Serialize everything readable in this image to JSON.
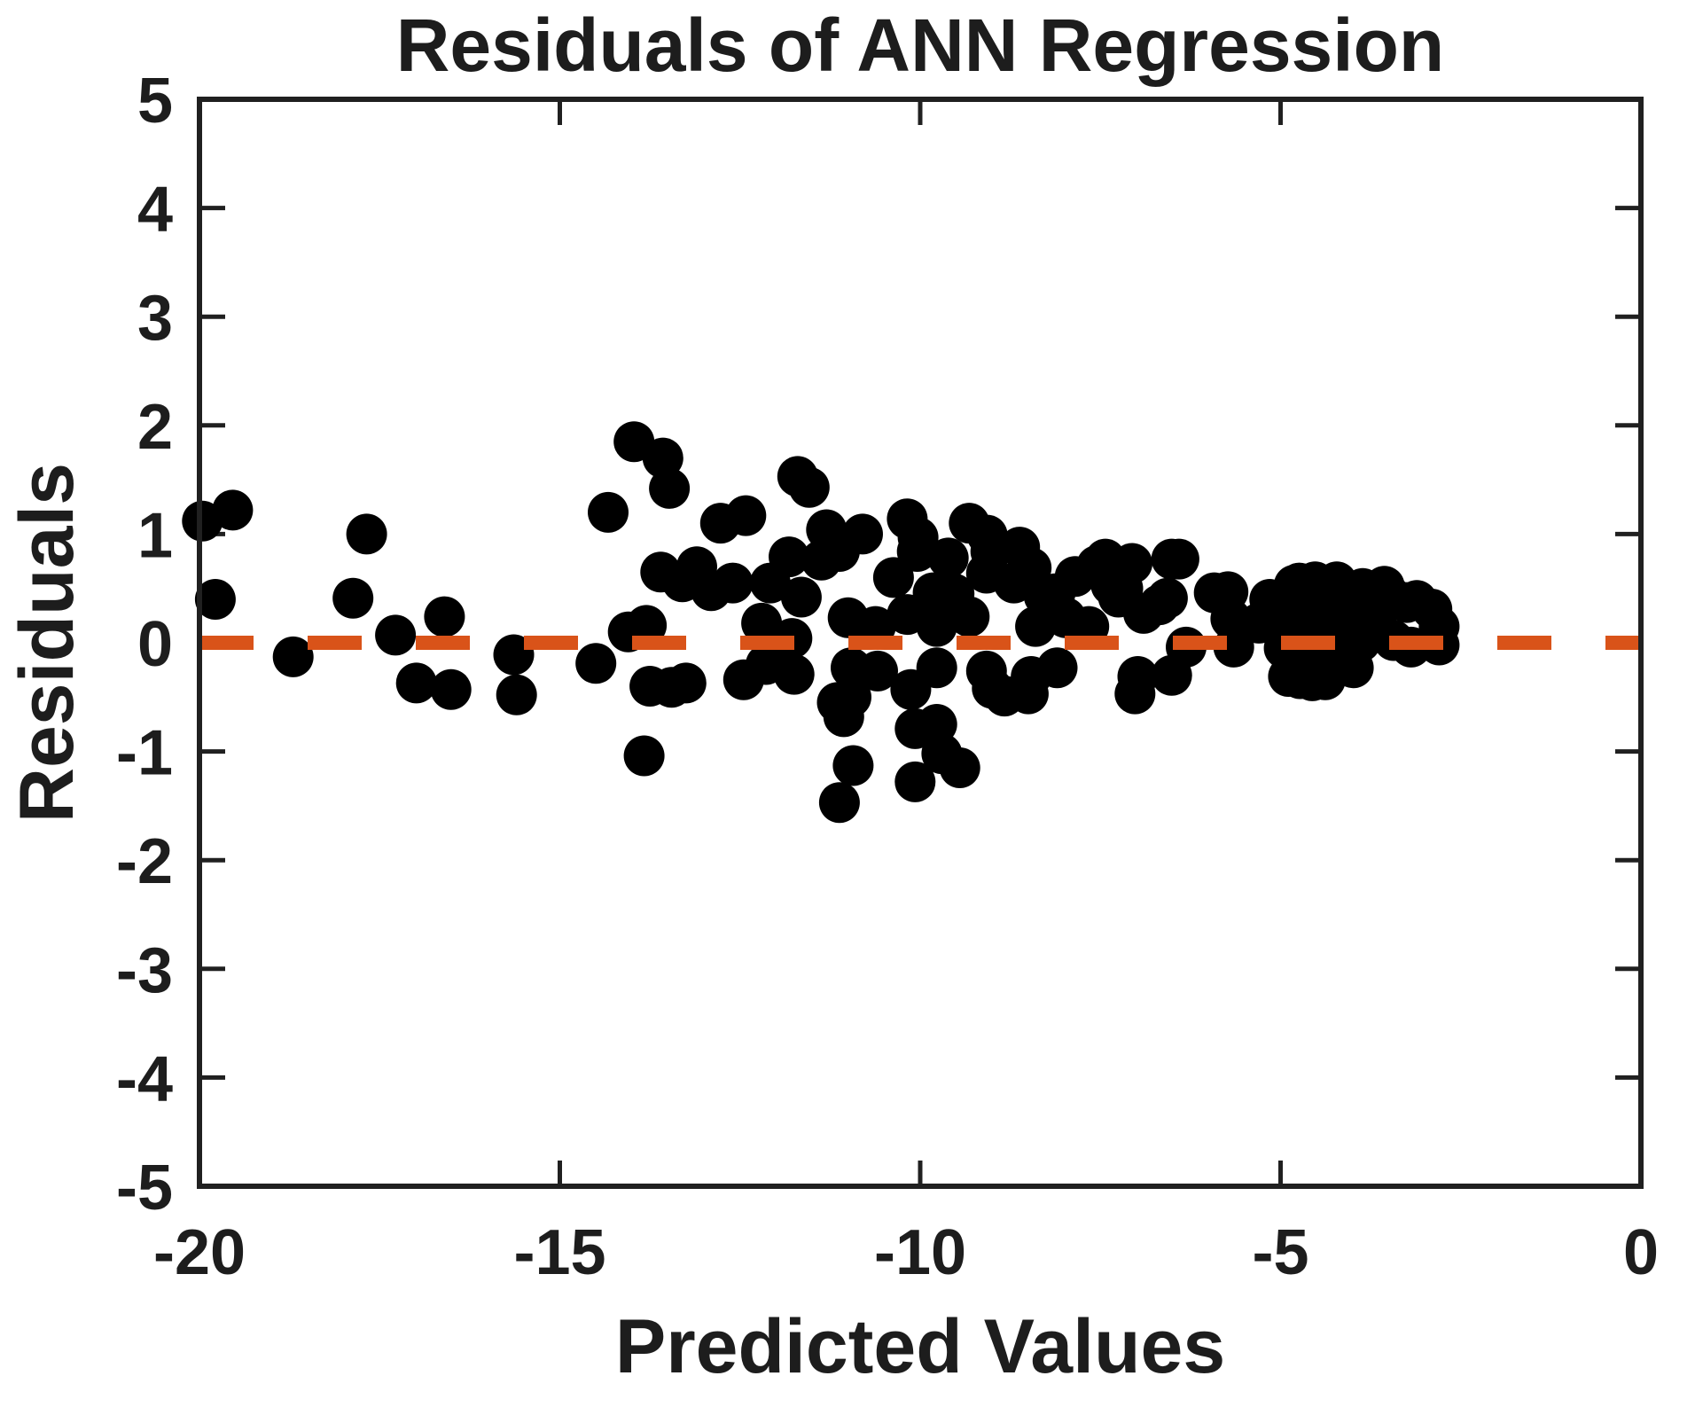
{
  "figure": {
    "title": "Residuals of ANN Regression",
    "xlabel": "Predicted Values",
    "ylabel": "Residuals"
  },
  "style": {
    "background": "#FFFFFF",
    "axis_color": "#202020",
    "marker_color": "#000000",
    "accent_orange": "#D95319"
  },
  "chart_data": {
    "type": "scatter",
    "title": "Residuals of ANN Regression",
    "xlabel": "Predicted Values",
    "ylabel": "Residuals",
    "xlim": [
      -20,
      0
    ],
    "ylim": [
      -5,
      5
    ],
    "xticks": [
      -20,
      -15,
      -10,
      -5,
      0
    ],
    "yticks": [
      -5,
      -4,
      -3,
      -2,
      -1,
      0,
      1,
      2,
      3,
      4,
      5
    ],
    "grid": false,
    "legend": null,
    "marker_color": "#000000",
    "zero_line": {
      "y": 0,
      "color": "#D95319",
      "style": "dashed"
    },
    "points": [
      [
        -19.96,
        1.12
      ],
      [
        -19.54,
        1.22
      ],
      [
        -19.78,
        0.4
      ],
      [
        -18.7,
        -0.13
      ],
      [
        -17.87,
        0.41
      ],
      [
        -17.68,
        1.0
      ],
      [
        -17.28,
        0.07
      ],
      [
        -16.99,
        -0.37
      ],
      [
        -16.6,
        0.24
      ],
      [
        -16.51,
        -0.43
      ],
      [
        -15.64,
        -0.11
      ],
      [
        -15.6,
        -0.48
      ],
      [
        -14.5,
        -0.19
      ],
      [
        -14.33,
        1.2
      ],
      [
        -14.05,
        0.1
      ],
      [
        -13.97,
        1.85
      ],
      [
        -13.83,
        -1.04
      ],
      [
        -13.8,
        0.16
      ],
      [
        -13.75,
        -0.4
      ],
      [
        -13.6,
        0.65
      ],
      [
        -13.57,
        1.7
      ],
      [
        -13.48,
        1.42
      ],
      [
        -13.45,
        -0.41
      ],
      [
        -13.3,
        0.56
      ],
      [
        -13.25,
        -0.37
      ],
      [
        -13.1,
        0.7
      ],
      [
        -12.9,
        0.48
      ],
      [
        -12.77,
        1.1
      ],
      [
        -12.6,
        0.55
      ],
      [
        -12.45,
        -0.34
      ],
      [
        -12.42,
        1.17
      ],
      [
        -12.2,
        0.18
      ],
      [
        -12.14,
        -0.2
      ],
      [
        -12.08,
        0.55
      ],
      [
        -11.82,
        0.79
      ],
      [
        -11.78,
        0.04
      ],
      [
        -11.75,
        -0.29
      ],
      [
        -11.7,
        1.53
      ],
      [
        -11.65,
        0.42
      ],
      [
        -11.54,
        1.43
      ],
      [
        -11.37,
        0.76
      ],
      [
        -11.3,
        1.04
      ],
      [
        -11.15,
        -0.55
      ],
      [
        -11.12,
        0.84
      ],
      [
        -11.12,
        -1.47
      ],
      [
        -11.06,
        -0.68
      ],
      [
        -11.0,
        0.23
      ],
      [
        -10.96,
        -0.23
      ],
      [
        -10.96,
        -0.5
      ],
      [
        -10.93,
        -1.13
      ],
      [
        -10.8,
        1.0
      ],
      [
        -10.62,
        0.15
      ],
      [
        -10.59,
        -0.26
      ],
      [
        -10.37,
        0.6
      ],
      [
        -10.18,
        1.14
      ],
      [
        -10.18,
        0.26
      ],
      [
        -10.13,
        -0.43
      ],
      [
        -10.07,
        -0.79
      ],
      [
        -10.07,
        -1.28
      ],
      [
        -10.04,
        0.84
      ],
      [
        -10.03,
        0.97
      ],
      [
        -9.82,
        0.46
      ],
      [
        -9.77,
        0.15
      ],
      [
        -9.77,
        -0.23
      ],
      [
        -9.77,
        -0.75
      ],
      [
        -9.7,
        -1.02
      ],
      [
        -9.61,
        0.78
      ],
      [
        -9.53,
        0.45
      ],
      [
        -9.45,
        -1.15
      ],
      [
        -9.32,
        1.1
      ],
      [
        -9.32,
        0.24
      ],
      [
        -9.08,
        0.64
      ],
      [
        -9.08,
        -0.26
      ],
      [
        -9.07,
        0.99
      ],
      [
        -9.02,
        0.84
      ],
      [
        -9.0,
        -0.42
      ],
      [
        -8.83,
        -0.49
      ],
      [
        -8.7,
        0.55
      ],
      [
        -8.62,
        0.88
      ],
      [
        -8.5,
        -0.47
      ],
      [
        -8.48,
        0.64
      ],
      [
        -8.46,
        0.69
      ],
      [
        -8.46,
        -0.31
      ],
      [
        -8.4,
        0.15
      ],
      [
        -8.28,
        0.43
      ],
      [
        -8.13,
        0.45
      ],
      [
        -8.1,
        -0.23
      ],
      [
        -7.98,
        0.23
      ],
      [
        -7.85,
        0.61
      ],
      [
        -7.66,
        0.15
      ],
      [
        -7.55,
        0.71
      ],
      [
        -7.43,
        0.77
      ],
      [
        -7.35,
        0.53
      ],
      [
        -7.25,
        0.42
      ],
      [
        -7.19,
        0.5
      ],
      [
        -7.06,
        0.73
      ],
      [
        -7.02,
        -0.47
      ],
      [
        -6.98,
        -0.31
      ],
      [
        -6.9,
        0.27
      ],
      [
        -6.68,
        0.35
      ],
      [
        -6.57,
        0.41
      ],
      [
        -6.51,
        0.77
      ],
      [
        -6.51,
        -0.3
      ],
      [
        -6.41,
        0.77
      ],
      [
        -6.31,
        -0.04
      ],
      [
        -5.92,
        0.46
      ],
      [
        -5.73,
        0.47
      ],
      [
        -5.69,
        0.22
      ],
      [
        -5.65,
        -0.04
      ],
      [
        -5.3,
        0.18
      ],
      [
        -5.15,
        0.4
      ],
      [
        -5.05,
        0.22
      ],
      [
        -4.95,
        -0.05
      ],
      [
        -4.89,
        -0.31
      ],
      [
        -4.87,
        0.27
      ],
      [
        -4.81,
        0.53
      ],
      [
        -4.78,
        0.12
      ],
      [
        -4.77,
        0.49
      ],
      [
        -4.74,
        0.55
      ],
      [
        -4.73,
        -0.33
      ],
      [
        -4.62,
        0.29
      ],
      [
        -4.62,
        -0.15
      ],
      [
        -4.56,
        -0.35
      ],
      [
        -4.52,
        0.56
      ],
      [
        -4.5,
        0.07
      ],
      [
        -4.42,
        0.27
      ],
      [
        -4.38,
        0.29
      ],
      [
        -4.38,
        -0.34
      ],
      [
        -4.29,
        -0.18
      ],
      [
        -4.23,
        0.5
      ],
      [
        -4.22,
        0.56
      ],
      [
        -4.17,
        0.04
      ],
      [
        -4.11,
        0.29
      ],
      [
        -3.99,
        -0.23
      ],
      [
        -3.89,
        0.33
      ],
      [
        -3.89,
        0.01
      ],
      [
        -3.86,
        0.5
      ],
      [
        -3.64,
        0.29
      ],
      [
        -3.56,
        0.52
      ],
      [
        -3.46,
        0.42
      ],
      [
        -3.43,
        0.02
      ],
      [
        -3.25,
        0.37
      ],
      [
        -3.19,
        -0.04
      ],
      [
        -3.11,
        0.39
      ],
      [
        -2.9,
        0.31
      ],
      [
        -2.8,
        0.15
      ],
      [
        -2.8,
        -0.02
      ]
    ]
  }
}
